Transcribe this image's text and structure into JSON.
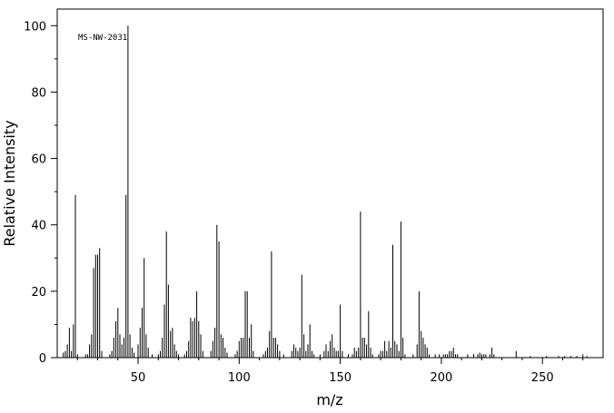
{
  "chart_data": {
    "type": "bar",
    "annotation": "MS-NW-2031",
    "xlabel": "m/z",
    "ylabel": "Relative Intensity",
    "xlim": [
      10,
      280
    ],
    "ylim": [
      0,
      105
    ],
    "x_ticks": [
      50,
      100,
      150,
      200,
      250
    ],
    "y_ticks": [
      0,
      20,
      40,
      60,
      80,
      100
    ],
    "peaks": [
      [
        13,
        1.5
      ],
      [
        14,
        2
      ],
      [
        15,
        4
      ],
      [
        16,
        9
      ],
      [
        17,
        2
      ],
      [
        18,
        10
      ],
      [
        19,
        49
      ],
      [
        20,
        1
      ],
      [
        24,
        1
      ],
      [
        25,
        1
      ],
      [
        26,
        4
      ],
      [
        27,
        7
      ],
      [
        28,
        27
      ],
      [
        29,
        31
      ],
      [
        30,
        31
      ],
      [
        31,
        33
      ],
      [
        32,
        2
      ],
      [
        36,
        1
      ],
      [
        37,
        2
      ],
      [
        38,
        6
      ],
      [
        39,
        11
      ],
      [
        40,
        15
      ],
      [
        41,
        7
      ],
      [
        42,
        4
      ],
      [
        43,
        6
      ],
      [
        44,
        49
      ],
      [
        45,
        100
      ],
      [
        46,
        7
      ],
      [
        47,
        3
      ],
      [
        48,
        1.5
      ],
      [
        50,
        4
      ],
      [
        51,
        9
      ],
      [
        52,
        15
      ],
      [
        53,
        30
      ],
      [
        54,
        7
      ],
      [
        55,
        3
      ],
      [
        57,
        1
      ],
      [
        60,
        1
      ],
      [
        61,
        2
      ],
      [
        62,
        6
      ],
      [
        63,
        16
      ],
      [
        64,
        38
      ],
      [
        65,
        22
      ],
      [
        66,
        8
      ],
      [
        67,
        9
      ],
      [
        68,
        4
      ],
      [
        69,
        2
      ],
      [
        70,
        1
      ],
      [
        73,
        1
      ],
      [
        74,
        2
      ],
      [
        75,
        5
      ],
      [
        76,
        12
      ],
      [
        77,
        11
      ],
      [
        78,
        12
      ],
      [
        79,
        20
      ],
      [
        80,
        11
      ],
      [
        81,
        7
      ],
      [
        82,
        2
      ],
      [
        86,
        2
      ],
      [
        87,
        5
      ],
      [
        88,
        9
      ],
      [
        89,
        40
      ],
      [
        90,
        35
      ],
      [
        91,
        7
      ],
      [
        92,
        6
      ],
      [
        93,
        3
      ],
      [
        94,
        1.5
      ],
      [
        98,
        1
      ],
      [
        99,
        2
      ],
      [
        100,
        5
      ],
      [
        101,
        6
      ],
      [
        102,
        6
      ],
      [
        103,
        20
      ],
      [
        104,
        20
      ],
      [
        105,
        6
      ],
      [
        106,
        10
      ],
      [
        107,
        2
      ],
      [
        112,
        1
      ],
      [
        113,
        2
      ],
      [
        114,
        3
      ],
      [
        115,
        8
      ],
      [
        116,
        32
      ],
      [
        117,
        6
      ],
      [
        118,
        6
      ],
      [
        119,
        4
      ],
      [
        120,
        2
      ],
      [
        122,
        1
      ],
      [
        126,
        2
      ],
      [
        127,
        4
      ],
      [
        128,
        3
      ],
      [
        129,
        2
      ],
      [
        130,
        3
      ],
      [
        131,
        25
      ],
      [
        132,
        7
      ],
      [
        133,
        2
      ],
      [
        134,
        4
      ],
      [
        135,
        10
      ],
      [
        136,
        2
      ],
      [
        137,
        1
      ],
      [
        140,
        1
      ],
      [
        142,
        2
      ],
      [
        143,
        4
      ],
      [
        144,
        2
      ],
      [
        145,
        5
      ],
      [
        146,
        7
      ],
      [
        147,
        3
      ],
      [
        148,
        2
      ],
      [
        149,
        2
      ],
      [
        150,
        16
      ],
      [
        151,
        2
      ],
      [
        154,
        1
      ],
      [
        156,
        1
      ],
      [
        157,
        3
      ],
      [
        158,
        2
      ],
      [
        159,
        3
      ],
      [
        160,
        44
      ],
      [
        161,
        6
      ],
      [
        162,
        6
      ],
      [
        163,
        4
      ],
      [
        164,
        14
      ],
      [
        165,
        3
      ],
      [
        166,
        1
      ],
      [
        169,
        1
      ],
      [
        170,
        2
      ],
      [
        171,
        2
      ],
      [
        172,
        5
      ],
      [
        173,
        2
      ],
      [
        174,
        5
      ],
      [
        175,
        3
      ],
      [
        176,
        34
      ],
      [
        177,
        5
      ],
      [
        178,
        4
      ],
      [
        179,
        2
      ],
      [
        180,
        41
      ],
      [
        181,
        6
      ],
      [
        182,
        1
      ],
      [
        186,
        1
      ],
      [
        188,
        4
      ],
      [
        189,
        20
      ],
      [
        190,
        8
      ],
      [
        191,
        6
      ],
      [
        192,
        4
      ],
      [
        193,
        3
      ],
      [
        194,
        1
      ],
      [
        197,
        1
      ],
      [
        199,
        1
      ],
      [
        201,
        1
      ],
      [
        202,
        1
      ],
      [
        203,
        1
      ],
      [
        204,
        2
      ],
      [
        205,
        2
      ],
      [
        206,
        3
      ],
      [
        207,
        1
      ],
      [
        208,
        1
      ],
      [
        213,
        1
      ],
      [
        216,
        1
      ],
      [
        218,
        1
      ],
      [
        219,
        1.5
      ],
      [
        220,
        1
      ],
      [
        221,
        1
      ],
      [
        222,
        1
      ],
      [
        224,
        1
      ],
      [
        225,
        3
      ],
      [
        226,
        1
      ],
      [
        237,
        2
      ],
      [
        244,
        0.5
      ],
      [
        252,
        0.5
      ],
      [
        258,
        0.5
      ],
      [
        261,
        0.5
      ],
      [
        264,
        0.5
      ],
      [
        267,
        0.5
      ],
      [
        270,
        1
      ],
      [
        272,
        0.5
      ]
    ]
  }
}
